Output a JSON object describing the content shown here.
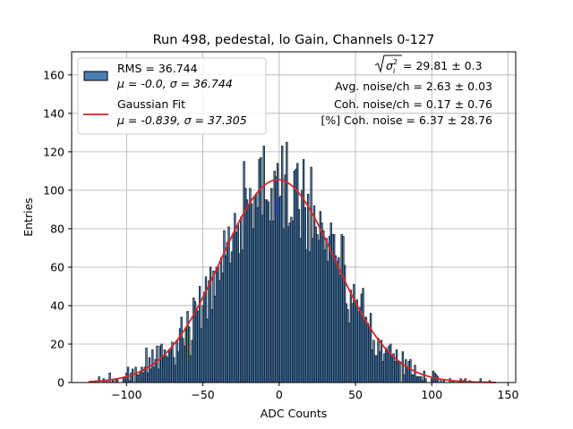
{
  "chart_data": {
    "type": "histogram",
    "title": "Run 498, pedestal, lo Gain, Channels 0-127",
    "xlabel": "ADC Counts",
    "ylabel": "Entries",
    "xlim": [
      -136,
      155
    ],
    "ylim": [
      0,
      172
    ],
    "xticks": [
      -100,
      -50,
      0,
      50,
      100,
      150
    ],
    "yticks": [
      0,
      20,
      40,
      60,
      80,
      100,
      120,
      140,
      160
    ],
    "grid": true,
    "legend_position": "upper-left",
    "histogram": {
      "label_line1": "RMS = 36.744",
      "label_line2": "μ = -0.0, σ = 36.744",
      "bin_width": 1,
      "face_color": "#4a7fb5",
      "edge_color": "#000000",
      "approx_total_entries": 10000,
      "x_range": [
        -125,
        142
      ]
    },
    "fit": {
      "label_line1": "Gaussian Fit",
      "label_line2": "μ = -0.839, σ = 37.305",
      "mu": -0.839,
      "sigma": 37.305,
      "amplitude": 105.5,
      "x_range": [
        -125,
        142
      ],
      "color": "#d62728"
    },
    "annotations": {
      "sqrt_value": " = 29.81 ± 0.3",
      "line2": "Avg. noise/ch = 2.63 ± 0.03",
      "line3": "Coh. noise/ch = 0.17 ± 0.76",
      "line4": "[%] Coh. noise = 6.37 ± 28.76"
    }
  }
}
